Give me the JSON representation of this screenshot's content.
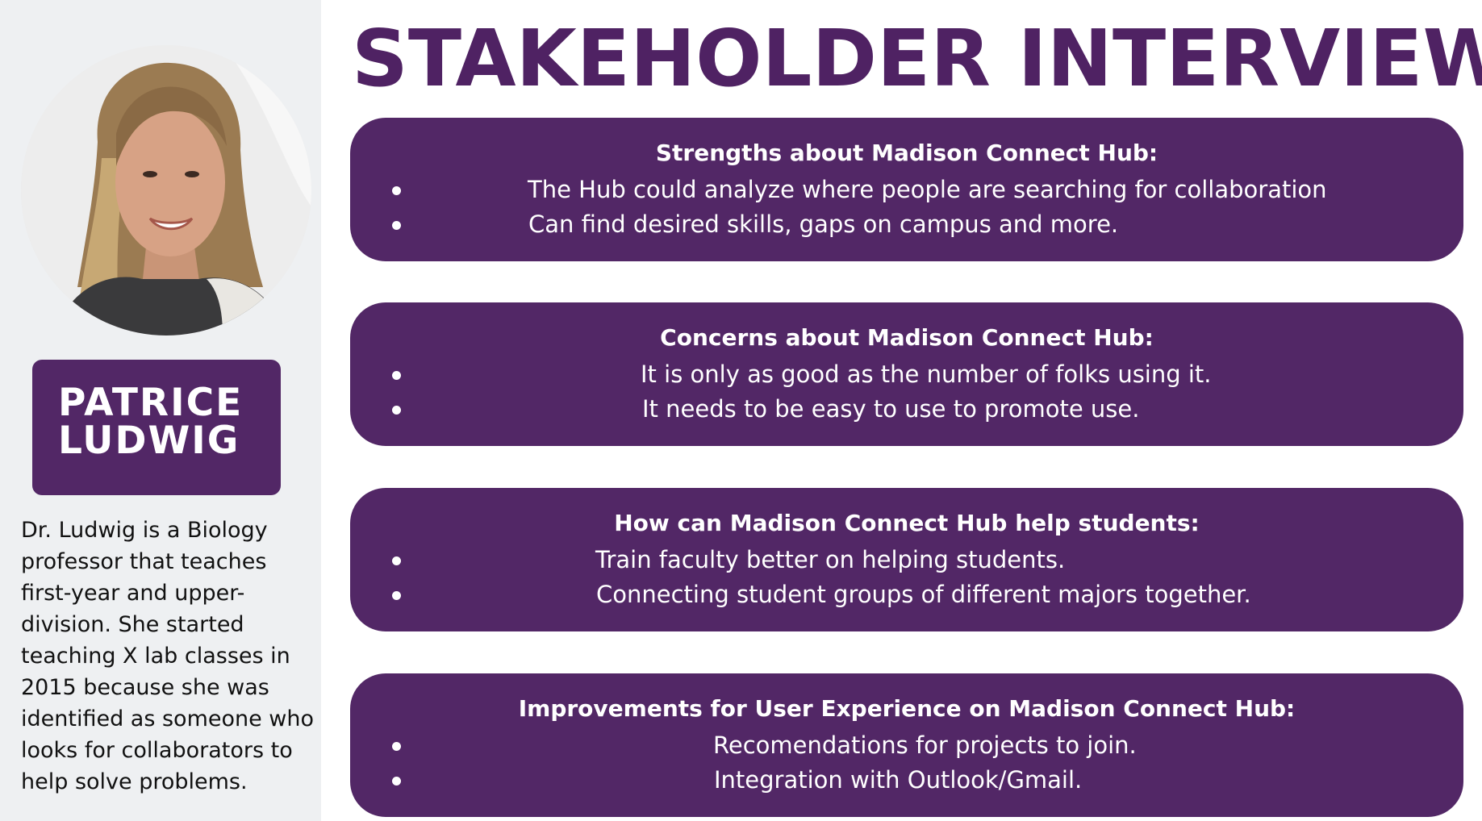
{
  "title": "STAKEHOLDER INTERVIEW",
  "profile": {
    "name_line1": "PATRICE",
    "name_line2": "LUDWIG",
    "bio": "Dr. Ludwig is a Biology professor that teaches first-year and upper-division. She started teaching X lab classes in 2015 because she was identified as someone who looks for collaborators to help solve problems."
  },
  "sections": [
    {
      "heading": "Strengths about Madison Connect Hub:",
      "items": [
        "The Hub could analyze where people are searching for collaboration",
        "Can find desired skills, gaps on campus and more."
      ]
    },
    {
      "heading": "Concerns about Madison Connect Hub:",
      "items": [
        "It is only as good as the number of folks using it.",
        "It needs to be easy to use to promote use."
      ]
    },
    {
      "heading": "How can Madison Connect Hub help students:",
      "items": [
        "Train faculty better on helping students.",
        "Connecting student groups of different majors together."
      ]
    },
    {
      "heading": "Improvements for User Experience on Madison Connect Hub:",
      "items": [
        "Recomendations for projects to join.",
        "Integration with Outlook/Gmail."
      ]
    }
  ],
  "colors": {
    "brand_purple": "#522766",
    "title_purple": "#4f2263",
    "sidebar_bg": "#eef0f2"
  }
}
